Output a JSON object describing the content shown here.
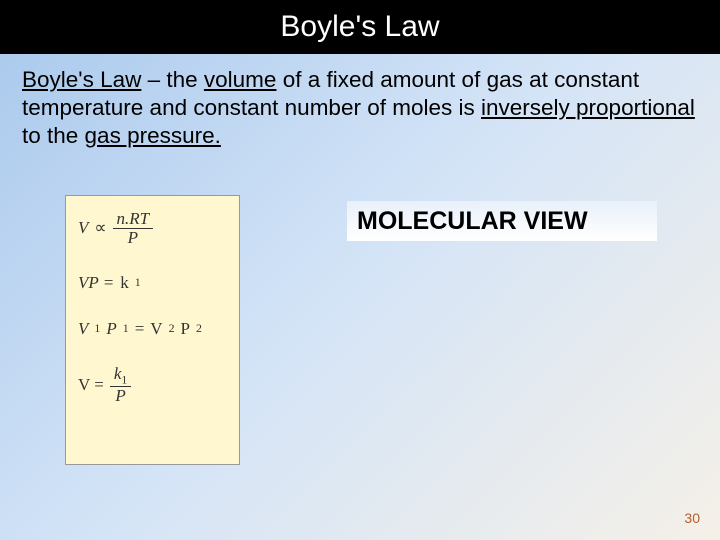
{
  "title": "Boyle's Law",
  "paragraph": {
    "lead": "Boyle's Law",
    "dash": " – the ",
    "volume": "volume",
    "mid1": " of a fixed amount of gas at constant temperature and constant number of moles is ",
    "inv": "inversely proportional",
    "mid2": " to the ",
    "gp": "gas pressure.",
    "tail": ""
  },
  "formulas": {
    "f1_left": "V",
    "f1_prop": "∝",
    "f1_num": "n.RT",
    "f1_den": "P",
    "f2": "VP = ",
    "f2_k": "k",
    "f2_sub": "1",
    "f3_left": "V",
    "f3_sub1": "1",
    "f3_p1": "P",
    "f3_sub2": "1",
    "f3_eq": " = ",
    "f3_v2": "V",
    "f3_sub3": "2",
    "f3_p2": "P",
    "f3_sub4": "2",
    "f4_left": "V =",
    "f4_num_k": "k",
    "f4_num_sub": "1",
    "f4_den": "P"
  },
  "molecular": "MOLECULAR VIEW",
  "pageNumber": "30",
  "colors": {
    "titleBg": "#000000",
    "titleFg": "#ffffff",
    "formulaBg": "#fff7d0",
    "pageNum": "#b85c2e"
  }
}
